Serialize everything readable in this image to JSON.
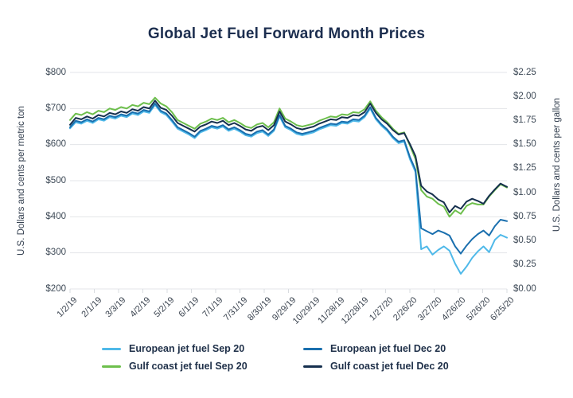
{
  "title": "Global Jet Fuel Forward Month Prices",
  "chart_data": {
    "type": "line",
    "title": "Global Jet Fuel Forward Month Prices",
    "grid": true,
    "legend_position": "bottom",
    "left_axis": {
      "label": "U.S. Dollars and cents per metric ton",
      "tick_labels": [
        "$800",
        "$700",
        "$600",
        "$500",
        "$400",
        "$300",
        "$200"
      ],
      "tick_values": [
        800,
        700,
        600,
        500,
        400,
        300,
        200
      ],
      "range": [
        200,
        800
      ]
    },
    "right_axis": {
      "label": "U.S. Dollars and cents per gallon",
      "tick_labels": [
        "$2.25",
        "$2.00",
        "$1.75",
        "$1.50",
        "$1.25",
        "$1.00",
        "$0.75",
        "$0.50",
        "$0.25",
        "$0.00"
      ],
      "range": [
        0,
        2.25
      ]
    },
    "x_axis": {
      "tick_labels": [
        "1/2/19",
        "2/1/19",
        "3/3/19",
        "4/2/19",
        "5/2/19",
        "6/1/19",
        "7/1/19",
        "7/31/19",
        "8/30/19",
        "9/29/19",
        "10/29/19",
        "11/28/19",
        "12/28/19",
        "1/27/20",
        "2/26/20",
        "3/27/20",
        "4/26/20",
        "5/26/20",
        "6/25/20"
      ],
      "tick_days": [
        0,
        30,
        60,
        90,
        120,
        150,
        180,
        210,
        240,
        270,
        300,
        330,
        360,
        390,
        420,
        450,
        480,
        510,
        540
      ],
      "range_days": [
        0,
        540
      ]
    },
    "x_days": [
      0,
      7,
      14,
      21,
      28,
      35,
      42,
      49,
      56,
      63,
      70,
      77,
      84,
      91,
      98,
      105,
      112,
      119,
      126,
      133,
      140,
      147,
      154,
      161,
      168,
      175,
      182,
      189,
      196,
      203,
      210,
      217,
      224,
      231,
      238,
      245,
      252,
      259,
      266,
      273,
      280,
      287,
      294,
      301,
      308,
      315,
      322,
      329,
      336,
      343,
      350,
      357,
      364,
      371,
      378,
      385,
      392,
      399,
      406,
      413,
      420,
      427,
      434,
      441,
      448,
      455,
      462,
      469,
      476,
      483,
      490,
      497,
      504,
      511,
      518,
      525,
      532,
      540
    ],
    "series": [
      {
        "name": "European jet fuel Sep 20",
        "color": "#4FB9E9",
        "values": [
          645,
          662,
          658,
          666,
          660,
          670,
          666,
          676,
          672,
          680,
          676,
          686,
          682,
          692,
          688,
          710,
          690,
          682,
          664,
          644,
          636,
          628,
          618,
          634,
          640,
          648,
          644,
          650,
          638,
          644,
          636,
          626,
          622,
          632,
          636,
          624,
          638,
          678,
          648,
          640,
          630,
          626,
          630,
          634,
          642,
          648,
          654,
          652,
          660,
          658,
          666,
          664,
          676,
          700,
          670,
          652,
          638,
          618,
          604,
          608,
          560,
          524,
          310,
          318,
          295,
          308,
          318,
          306,
          270,
          242,
          262,
          286,
          304,
          318,
          302,
          336,
          350,
          342
        ]
      },
      {
        "name": "Gulf coast jet fuel Sep 20",
        "color": "#6DBF4C",
        "values": [
          668,
          686,
          682,
          690,
          684,
          694,
          690,
          700,
          696,
          704,
          700,
          710,
          706,
          716,
          712,
          730,
          714,
          706,
          690,
          668,
          660,
          652,
          644,
          658,
          664,
          672,
          668,
          674,
          662,
          668,
          660,
          650,
          646,
          656,
          660,
          648,
          662,
          700,
          672,
          664,
          654,
          650,
          654,
          658,
          666,
          672,
          678,
          676,
          684,
          682,
          690,
          688,
          698,
          720,
          694,
          676,
          662,
          644,
          630,
          634,
          598,
          560,
          474,
          456,
          450,
          436,
          428,
          400,
          418,
          408,
          430,
          438,
          434,
          434,
          456,
          474,
          490,
          481
        ]
      },
      {
        "name": "European jet fuel Dec 20",
        "color": "#1A6FAE",
        "values": [
          648,
          666,
          662,
          670,
          664,
          674,
          670,
          680,
          676,
          684,
          680,
          690,
          686,
          696,
          692,
          714,
          694,
          686,
          668,
          648,
          640,
          632,
          622,
          638,
          644,
          652,
          648,
          654,
          642,
          648,
          640,
          630,
          626,
          636,
          640,
          628,
          642,
          682,
          652,
          644,
          634,
          630,
          634,
          638,
          646,
          652,
          658,
          656,
          664,
          662,
          670,
          668,
          680,
          704,
          674,
          656,
          642,
          622,
          608,
          612,
          566,
          530,
          368,
          360,
          352,
          362,
          356,
          348,
          318,
          298,
          320,
          338,
          352,
          362,
          348,
          374,
          392,
          388
        ]
      },
      {
        "name": "Gulf coast jet fuel Dec 20",
        "color": "#16304E",
        "values": [
          655,
          674,
          670,
          678,
          672,
          682,
          678,
          688,
          684,
          692,
          688,
          698,
          694,
          704,
          700,
          722,
          702,
          696,
          680,
          660,
          652,
          644,
          636,
          650,
          656,
          664,
          660,
          666,
          654,
          660,
          652,
          642,
          638,
          648,
          652,
          640,
          654,
          692,
          664,
          656,
          646,
          642,
          646,
          650,
          658,
          664,
          670,
          668,
          676,
          674,
          682,
          680,
          690,
          714,
          688,
          670,
          658,
          640,
          628,
          632,
          602,
          568,
          486,
          470,
          462,
          448,
          440,
          412,
          430,
          422,
          442,
          450,
          444,
          436,
          458,
          476,
          492,
          483
        ]
      }
    ]
  },
  "legend": {
    "items": [
      {
        "label": "European jet fuel Sep 20",
        "color": "#4FB9E9",
        "col": 0,
        "row": 0
      },
      {
        "label": "Gulf coast jet fuel Sep 20",
        "color": "#6DBF4C",
        "col": 0,
        "row": 1
      },
      {
        "label": "European jet fuel Dec 20",
        "color": "#1A6FAE",
        "col": 1,
        "row": 0
      },
      {
        "label": "Gulf coast jet fuel Dec 20",
        "color": "#16304E",
        "col": 1,
        "row": 1
      }
    ]
  },
  "style": {
    "gridline_color": "#E3E5E8",
    "tick_mark_color": "#D9DCE0",
    "title_color": "#1C2E4F"
  }
}
